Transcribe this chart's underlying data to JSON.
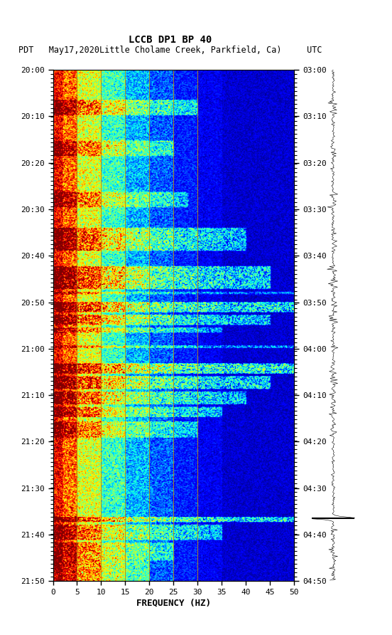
{
  "title_line1": "LCCB DP1 BP 40",
  "title_line2": "PDT   May17,2020Little Cholame Creek, Parkfield, Ca)     UTC",
  "left_time_labels": [
    "20:00",
    "20:10",
    "20:20",
    "20:30",
    "20:40",
    "20:50",
    "21:00",
    "21:10",
    "21:20",
    "21:30",
    "21:40",
    "21:50"
  ],
  "right_time_labels": [
    "03:00",
    "03:10",
    "03:20",
    "03:30",
    "03:40",
    "03:50",
    "04:00",
    "04:10",
    "04:20",
    "04:30",
    "04:40",
    "04:50"
  ],
  "freq_ticks": [
    0,
    5,
    10,
    15,
    20,
    25,
    30,
    35,
    40,
    45,
    50
  ],
  "freq_label": "FREQUENCY (HZ)",
  "freq_min": 0,
  "freq_max": 50,
  "vertical_lines_freq": [
    5,
    10,
    15,
    20,
    25,
    30
  ],
  "fig_width": 5.52,
  "fig_height": 8.92,
  "dpi": 100,
  "background_color": "#ffffff",
  "random_seed": 42,
  "time_steps": 600,
  "freq_steps": 250
}
